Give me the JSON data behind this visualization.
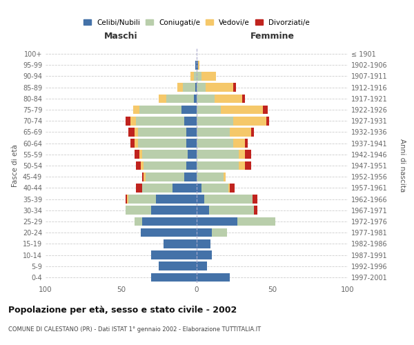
{
  "age_groups": [
    "0-4",
    "5-9",
    "10-14",
    "15-19",
    "20-24",
    "25-29",
    "30-34",
    "35-39",
    "40-44",
    "45-49",
    "50-54",
    "55-59",
    "60-64",
    "65-69",
    "70-74",
    "75-79",
    "80-84",
    "85-89",
    "90-94",
    "95-99",
    "100+"
  ],
  "birth_years": [
    "1997-2001",
    "1992-1996",
    "1987-1991",
    "1982-1986",
    "1977-1981",
    "1972-1976",
    "1967-1971",
    "1962-1966",
    "1957-1961",
    "1952-1956",
    "1947-1951",
    "1942-1946",
    "1937-1941",
    "1932-1936",
    "1927-1931",
    "1922-1926",
    "1917-1921",
    "1912-1916",
    "1907-1911",
    "1902-1906",
    "≤ 1901"
  ],
  "males": {
    "celibe": [
      30,
      25,
      30,
      22,
      37,
      36,
      30,
      27,
      16,
      8,
      7,
      6,
      7,
      7,
      8,
      10,
      2,
      1,
      0,
      1,
      0
    ],
    "coniugato": [
      0,
      0,
      0,
      0,
      0,
      5,
      17,
      18,
      20,
      26,
      28,
      30,
      32,
      32,
      32,
      28,
      18,
      8,
      2,
      0,
      0
    ],
    "vedovo": [
      0,
      0,
      0,
      0,
      0,
      0,
      0,
      1,
      0,
      1,
      2,
      2,
      2,
      2,
      4,
      4,
      5,
      4,
      2,
      0,
      0
    ],
    "divorziato": [
      0,
      0,
      0,
      0,
      0,
      0,
      0,
      1,
      4,
      1,
      3,
      3,
      3,
      4,
      3,
      0,
      0,
      0,
      0,
      0,
      0
    ]
  },
  "females": {
    "nubile": [
      22,
      7,
      10,
      9,
      10,
      27,
      8,
      5,
      3,
      0,
      0,
      0,
      0,
      0,
      0,
      0,
      0,
      0,
      0,
      1,
      0
    ],
    "coniugata": [
      0,
      0,
      0,
      0,
      10,
      25,
      30,
      32,
      18,
      18,
      28,
      28,
      24,
      22,
      24,
      16,
      12,
      6,
      3,
      0,
      0
    ],
    "vedova": [
      0,
      0,
      0,
      0,
      0,
      0,
      0,
      0,
      1,
      1,
      4,
      4,
      8,
      14,
      22,
      28,
      18,
      18,
      10,
      1,
      0
    ],
    "divorziata": [
      0,
      0,
      0,
      0,
      0,
      0,
      2,
      3,
      3,
      0,
      4,
      4,
      2,
      2,
      2,
      3,
      2,
      2,
      0,
      0,
      0
    ]
  },
  "colors": {
    "celibe": "#4472a8",
    "coniugato": "#b9ceab",
    "vedovo": "#f5c86a",
    "divorziato": "#c0231e"
  },
  "title": "Popolazione per età, sesso e stato civile - 2002",
  "subtitle": "COMUNE DI CALESTANO (PR) - Dati ISTAT 1° gennaio 2002 - Elaborazione TUTTITALIA.IT",
  "xlabel_left": "Maschi",
  "xlabel_right": "Femmine",
  "ylabel_left": "Fasce di età",
  "ylabel_right": "Anni di nascita",
  "legend_labels": [
    "Celibi/Nubili",
    "Coniugati/e",
    "Vedovi/e",
    "Divorziati/e"
  ],
  "xlim": 100,
  "background_color": "#ffffff",
  "grid_color": "#cccccc"
}
